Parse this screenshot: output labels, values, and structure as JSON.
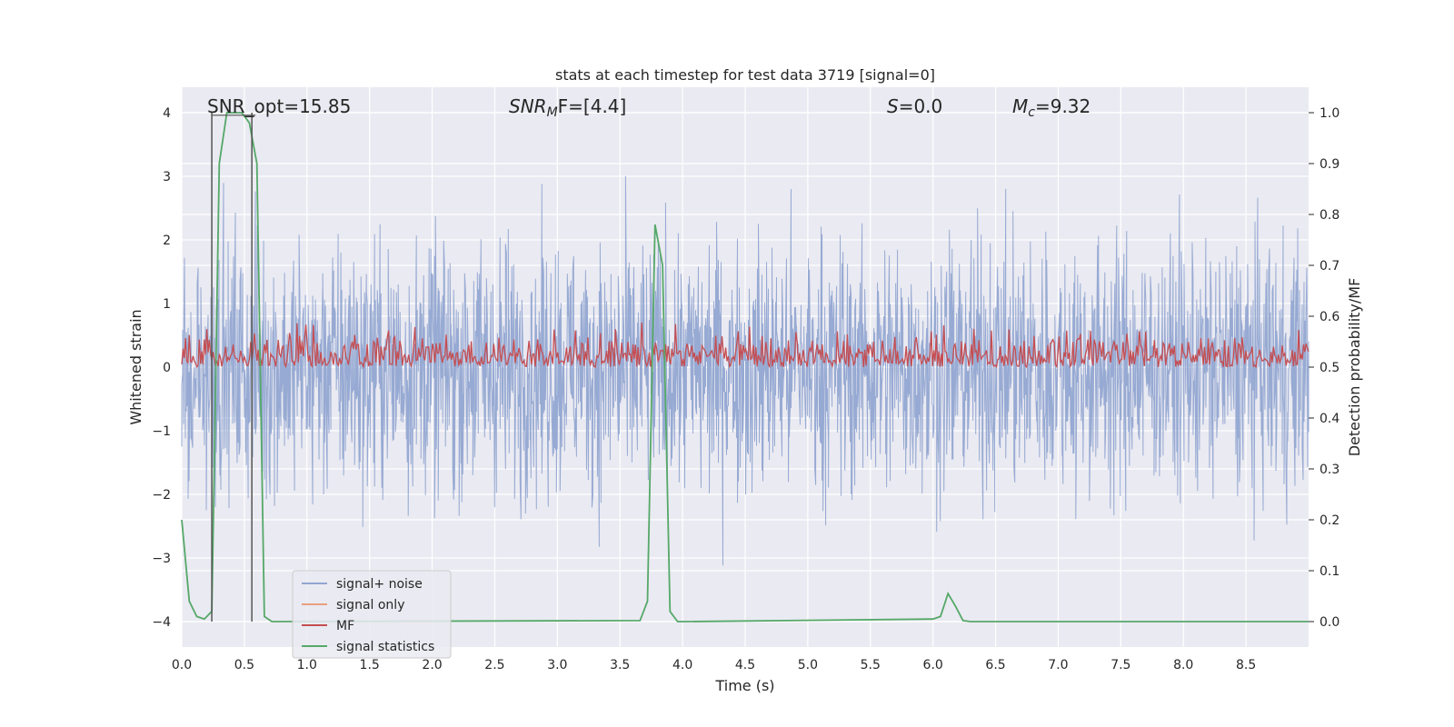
{
  "chart_data": {
    "type": "line",
    "title": "stats at each timestep for test data 3719 [signal=0]",
    "xlabel": "Time (s)",
    "ylabel_left": "Whitened strain",
    "ylabel_right": "Detection probability/MF",
    "xlim": [
      0,
      9.0
    ],
    "ylim_left": [
      -4.4,
      4.4
    ],
    "ylim_right": [
      -0.05,
      1.05
    ],
    "x_ticks": [
      "0.0",
      "0.5",
      "1.0",
      "1.5",
      "2.0",
      "2.5",
      "3.0",
      "3.5",
      "4.0",
      "4.5",
      "5.0",
      "5.5",
      "6.0",
      "6.5",
      "7.0",
      "7.5",
      "8.0",
      "8.5"
    ],
    "y_ticks_left": [
      "4",
      "3",
      "2",
      "1",
      "0",
      "−1",
      "−2",
      "−3",
      "−4"
    ],
    "y_ticks_right": [
      "1.0",
      "0.9",
      "0.8",
      "0.7",
      "0.6",
      "0.5",
      "0.4",
      "0.3",
      "0.2",
      "0.1",
      "0.0"
    ],
    "grid": true,
    "legend_placement": "lower-left",
    "annotations": {
      "snr_opt": "SNR_opt=15.85",
      "snr_mf_base": "SNR",
      "snr_mf_sub": "M",
      "snr_mf_tail": "F=[4.4]",
      "s_var": "S",
      "s_val": "=0.0",
      "mc_var": "M",
      "mc_sub": "c",
      "mc_val": "=9.32"
    },
    "series": [
      {
        "name": "signal+ noise",
        "color": "#92a6d1",
        "axis": "left",
        "description_range": [
          -4.0,
          4.0
        ]
      },
      {
        "name": "signal only",
        "color": "#e8a07f",
        "axis": "left"
      },
      {
        "name": "MF",
        "color": "#c44e52",
        "axis": "right",
        "approx_range": [
          0.5,
          0.6
        ]
      },
      {
        "name": "signal statistics",
        "color": "#55a868",
        "axis": "right",
        "x": [
          0.0,
          0.06,
          0.12,
          0.18,
          0.24,
          0.3,
          0.36,
          0.42,
          0.48,
          0.54,
          0.6,
          0.66,
          0.72,
          3.66,
          3.72,
          3.78,
          3.84,
          3.9,
          3.96,
          4.02,
          6.0,
          6.06,
          6.12,
          6.18,
          6.24,
          6.3,
          9.0
        ],
        "values": [
          0.2,
          0.04,
          0.01,
          0.005,
          0.02,
          0.9,
          1.0,
          1.0,
          1.0,
          0.98,
          0.9,
          0.01,
          0.0,
          0.002,
          0.04,
          0.78,
          0.7,
          0.02,
          0.0,
          0.0,
          0.005,
          0.01,
          0.055,
          0.03,
          0.002,
          0.0,
          0.0
        ]
      }
    ],
    "vertical_markers": [
      0.24,
      0.56
    ]
  },
  "legend": {
    "items": [
      {
        "label": "signal+ noise",
        "color": "#92a6d1"
      },
      {
        "label": "signal only",
        "color": "#e8a07f"
      },
      {
        "label": "MF",
        "color": "#c44e52"
      },
      {
        "label": "signal statistics",
        "color": "#55a868"
      }
    ]
  }
}
